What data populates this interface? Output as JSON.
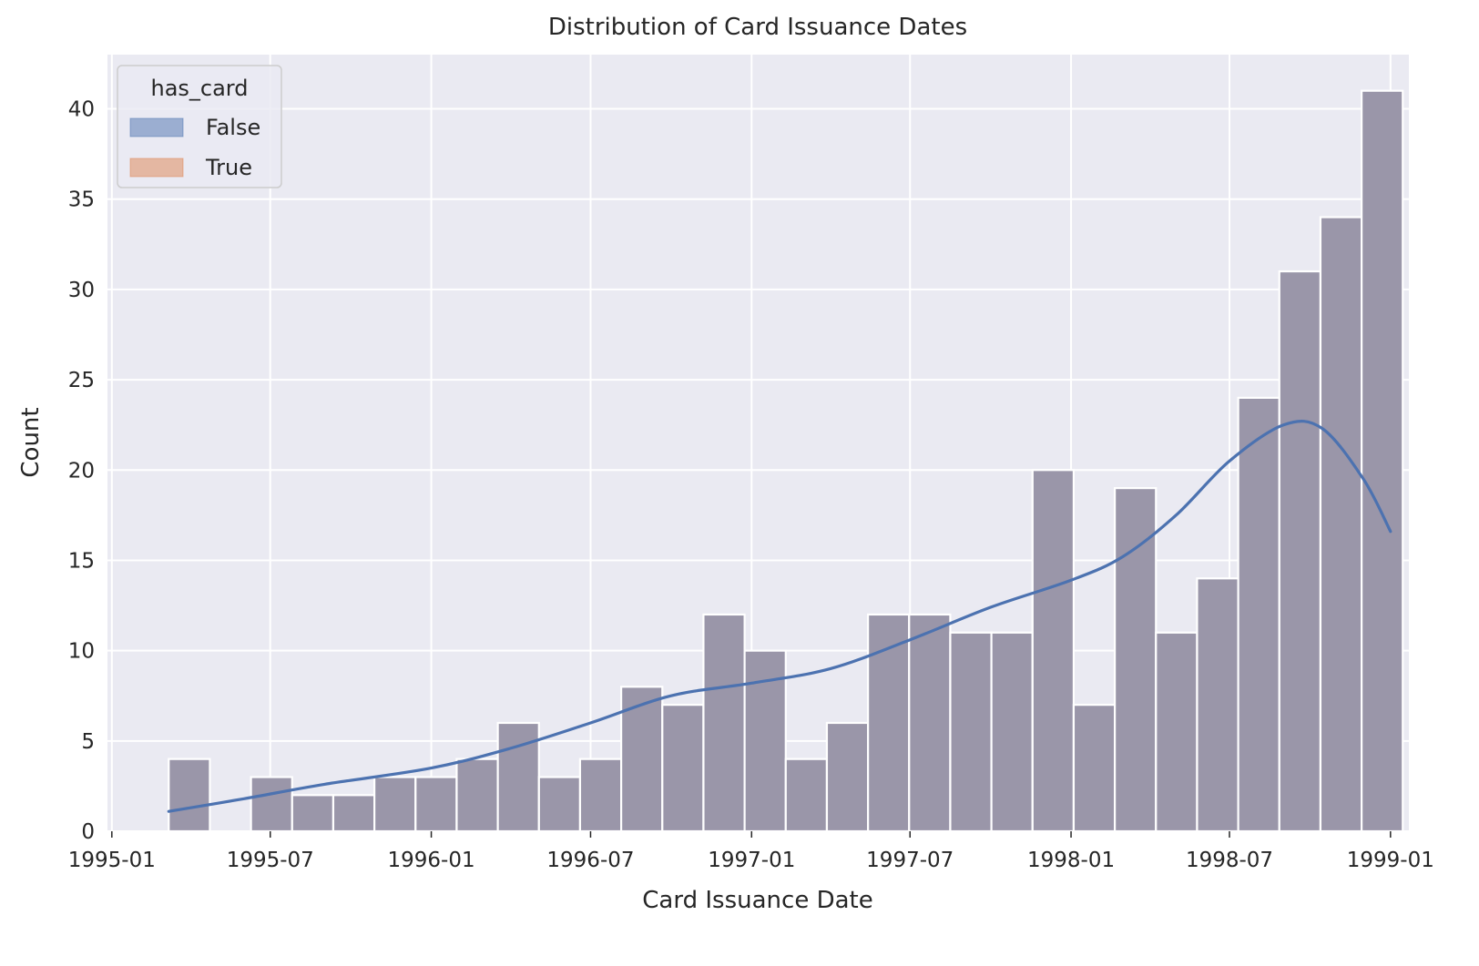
{
  "chart_data": {
    "type": "bar",
    "subtype": "histogram-with-kde",
    "title": "Distribution of Card Issuance Dates",
    "xlabel": "Card Issuance Date",
    "ylabel": "Count",
    "x_ticks": [
      "1995-01",
      "1995-07",
      "1996-01",
      "1996-07",
      "1997-01",
      "1997-07",
      "1998-01",
      "1998-07",
      "1999-01"
    ],
    "xlim": [
      "1994-12-27",
      "1999-01-22"
    ],
    "ylim": [
      0,
      43
    ],
    "y_ticks": [
      0,
      5,
      10,
      15,
      20,
      25,
      30,
      35,
      40
    ],
    "grid": true,
    "legend": {
      "title": "has_card",
      "placement": "top-left",
      "entries": [
        {
          "label": "False",
          "color": "#4c72b0"
        },
        {
          "label": "True",
          "color": "#dd8452"
        }
      ]
    },
    "bars": [
      {
        "start": "1995-03-07",
        "end": "1995-04-23",
        "count": 4
      },
      {
        "start": "1995-04-23",
        "end": "1995-06-09",
        "count": 0
      },
      {
        "start": "1995-06-09",
        "end": "1995-07-26",
        "count": 3
      },
      {
        "start": "1995-07-26",
        "end": "1995-09-11",
        "count": 2
      },
      {
        "start": "1995-09-11",
        "end": "1995-10-28",
        "count": 2
      },
      {
        "start": "1995-10-28",
        "end": "1995-12-14",
        "count": 3
      },
      {
        "start": "1995-12-14",
        "end": "1996-01-30",
        "count": 3
      },
      {
        "start": "1996-01-30",
        "end": "1996-03-17",
        "count": 4
      },
      {
        "start": "1996-03-17",
        "end": "1996-05-03",
        "count": 6
      },
      {
        "start": "1996-05-03",
        "end": "1996-06-19",
        "count": 3
      },
      {
        "start": "1996-06-19",
        "end": "1996-08-05",
        "count": 4
      },
      {
        "start": "1996-08-05",
        "end": "1996-09-21",
        "count": 8
      },
      {
        "start": "1996-09-21",
        "end": "1996-11-07",
        "count": 7
      },
      {
        "start": "1996-11-07",
        "end": "1996-12-24",
        "count": 12
      },
      {
        "start": "1996-12-24",
        "end": "1997-02-09",
        "count": 10
      },
      {
        "start": "1997-02-09",
        "end": "1997-03-28",
        "count": 4
      },
      {
        "start": "1997-03-28",
        "end": "1997-05-14",
        "count": 6
      },
      {
        "start": "1997-05-14",
        "end": "1997-06-30",
        "count": 12
      },
      {
        "start": "1997-06-30",
        "end": "1997-08-16",
        "count": 12
      },
      {
        "start": "1997-08-16",
        "end": "1997-10-02",
        "count": 11
      },
      {
        "start": "1997-10-02",
        "end": "1997-11-18",
        "count": 11
      },
      {
        "start": "1997-11-18",
        "end": "1998-01-04",
        "count": 20
      },
      {
        "start": "1998-01-04",
        "end": "1998-02-20",
        "count": 7
      },
      {
        "start": "1998-02-20",
        "end": "1998-04-08",
        "count": 19
      },
      {
        "start": "1998-04-08",
        "end": "1998-05-25",
        "count": 11
      },
      {
        "start": "1998-05-25",
        "end": "1998-07-11",
        "count": 14
      },
      {
        "start": "1998-07-11",
        "end": "1998-08-27",
        "count": 24
      },
      {
        "start": "1998-08-27",
        "end": "1998-10-13",
        "count": 31
      },
      {
        "start": "1998-10-13",
        "end": "1998-11-29",
        "count": 34
      },
      {
        "start": "1998-11-29",
        "end": "1999-01-15",
        "count": 41
      }
    ],
    "bar_color": "#9a96a9",
    "kde": {
      "color": "#4c72b0",
      "points": [
        {
          "x": "1995-03-07",
          "y": 1.1
        },
        {
          "x": "1995-06-01",
          "y": 1.8
        },
        {
          "x": "1995-09-01",
          "y": 2.6
        },
        {
          "x": "1996-01-01",
          "y": 3.5
        },
        {
          "x": "1996-04-01",
          "y": 4.6
        },
        {
          "x": "1996-07-01",
          "y": 6.0
        },
        {
          "x": "1996-10-01",
          "y": 7.5
        },
        {
          "x": "1997-01-01",
          "y": 8.2
        },
        {
          "x": "1997-04-01",
          "y": 9.0
        },
        {
          "x": "1997-07-01",
          "y": 10.6
        },
        {
          "x": "1997-10-01",
          "y": 12.4
        },
        {
          "x": "1998-01-01",
          "y": 13.9
        },
        {
          "x": "1998-03-01",
          "y": 15.2
        },
        {
          "x": "1998-05-01",
          "y": 17.5
        },
        {
          "x": "1998-07-01",
          "y": 20.5
        },
        {
          "x": "1998-09-01",
          "y": 22.5
        },
        {
          "x": "1998-10-15",
          "y": 22.3
        },
        {
          "x": "1998-12-01",
          "y": 19.5
        },
        {
          "x": "1999-01-01",
          "y": 16.6
        }
      ]
    }
  }
}
